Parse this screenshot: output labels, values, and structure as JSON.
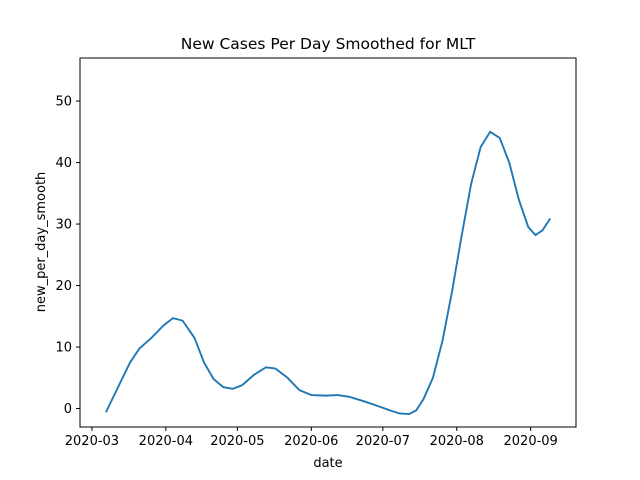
{
  "chart_data": {
    "type": "line",
    "title": "New Cases Per Day Smoothed for MLT",
    "xlabel": "date",
    "ylabel": "new_per_day_smooth",
    "xlim": [
      "2020-02-25",
      "2020-09-20"
    ],
    "ylim": [
      -3,
      57
    ],
    "x_tick_labels": [
      "2020-03",
      "2020-04",
      "2020-05",
      "2020-06",
      "2020-07",
      "2020-08",
      "2020-09"
    ],
    "y_ticks": [
      0,
      10,
      20,
      30,
      40,
      50
    ],
    "grid": false,
    "legend": null,
    "series": [
      {
        "color": "#1f77b4",
        "points": [
          {
            "x": "2020-03-07",
            "y": -0.5
          },
          {
            "x": "2020-03-12",
            "y": 3.5
          },
          {
            "x": "2020-03-17",
            "y": 7.5
          },
          {
            "x": "2020-03-21",
            "y": 9.8
          },
          {
            "x": "2020-03-26",
            "y": 11.5
          },
          {
            "x": "2020-03-31",
            "y": 13.5
          },
          {
            "x": "2020-04-04",
            "y": 14.7
          },
          {
            "x": "2020-04-08",
            "y": 14.3
          },
          {
            "x": "2020-04-13",
            "y": 11.5
          },
          {
            "x": "2020-04-17",
            "y": 7.5
          },
          {
            "x": "2020-04-21",
            "y": 4.8
          },
          {
            "x": "2020-04-25",
            "y": 3.5
          },
          {
            "x": "2020-04-29",
            "y": 3.2
          },
          {
            "x": "2020-05-03",
            "y": 3.8
          },
          {
            "x": "2020-05-08",
            "y": 5.5
          },
          {
            "x": "2020-05-13",
            "y": 6.7
          },
          {
            "x": "2020-05-17",
            "y": 6.5
          },
          {
            "x": "2020-05-22",
            "y": 5.0
          },
          {
            "x": "2020-05-27",
            "y": 3.0
          },
          {
            "x": "2020-06-01",
            "y": 2.2
          },
          {
            "x": "2020-06-07",
            "y": 2.1
          },
          {
            "x": "2020-06-12",
            "y": 2.2
          },
          {
            "x": "2020-06-17",
            "y": 1.9
          },
          {
            "x": "2020-06-23",
            "y": 1.2
          },
          {
            "x": "2020-06-29",
            "y": 0.4
          },
          {
            "x": "2020-07-04",
            "y": -0.3
          },
          {
            "x": "2020-07-08",
            "y": -0.8
          },
          {
            "x": "2020-07-12",
            "y": -0.9
          },
          {
            "x": "2020-07-15",
            "y": -0.3
          },
          {
            "x": "2020-07-18",
            "y": 1.5
          },
          {
            "x": "2020-07-22",
            "y": 5.0
          },
          {
            "x": "2020-07-26",
            "y": 11.0
          },
          {
            "x": "2020-07-30",
            "y": 19.0
          },
          {
            "x": "2020-08-03",
            "y": 28.0
          },
          {
            "x": "2020-08-07",
            "y": 36.5
          },
          {
            "x": "2020-08-11",
            "y": 42.5
          },
          {
            "x": "2020-08-15",
            "y": 45.0
          },
          {
            "x": "2020-08-19",
            "y": 44.0
          },
          {
            "x": "2020-08-23",
            "y": 40.0
          },
          {
            "x": "2020-08-27",
            "y": 34.0
          },
          {
            "x": "2020-08-31",
            "y": 29.5
          },
          {
            "x": "2020-09-03",
            "y": 28.2
          },
          {
            "x": "2020-09-06",
            "y": 29.0
          },
          {
            "x": "2020-09-09",
            "y": 30.8
          }
        ]
      }
    ]
  }
}
